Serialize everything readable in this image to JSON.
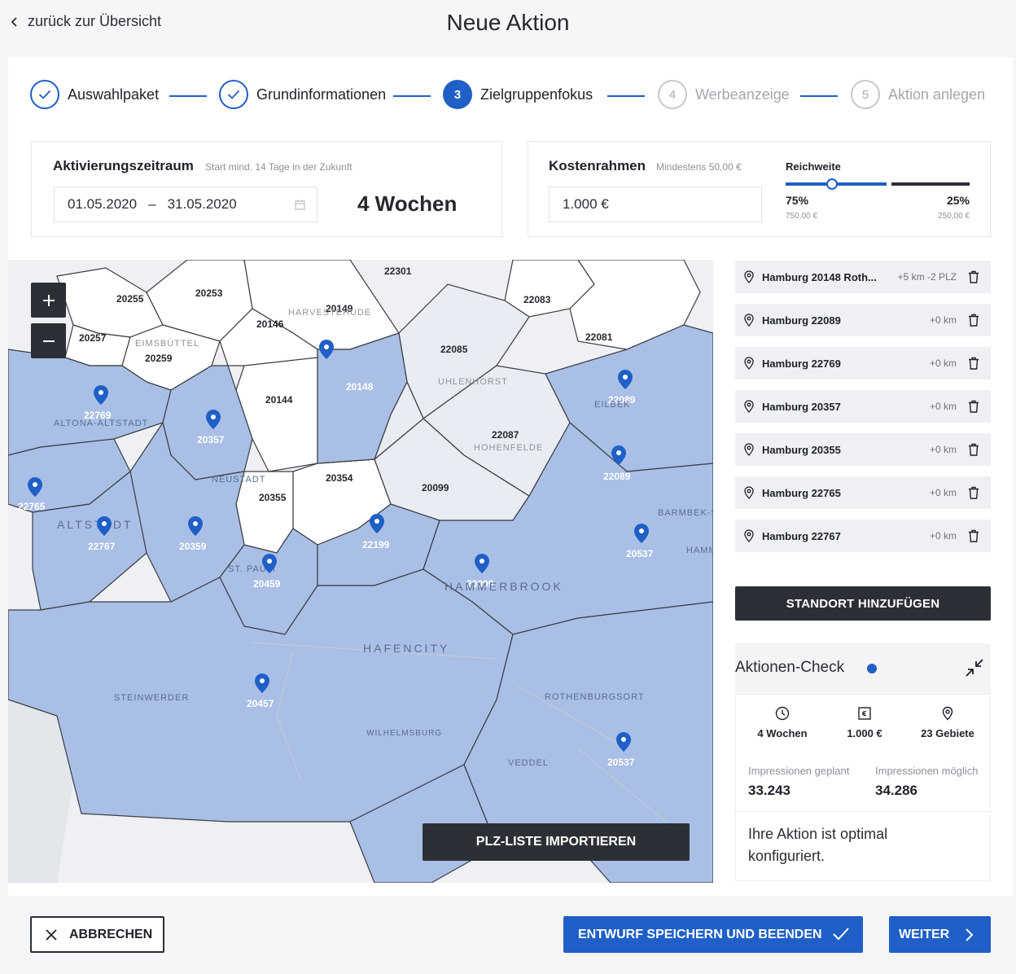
{
  "header": {
    "back_label": "zurück zur Übersicht",
    "title": "Neue Aktion"
  },
  "stepper": [
    {
      "number": "1",
      "label": "Auswahlpaket",
      "state": "done"
    },
    {
      "number": "2",
      "label": "Grundinformationen",
      "state": "done"
    },
    {
      "number": "3",
      "label": "Zielgruppenfokus",
      "state": "active"
    },
    {
      "number": "4",
      "label": "Werbeanzeige",
      "state": "todo"
    },
    {
      "number": "5",
      "label": "Aktion anlegen",
      "state": "todo"
    }
  ],
  "activation": {
    "title": "Aktivierungszeitraum",
    "hint": "Start mind. 14 Tage in der Zukunft",
    "start": "01.05.2020",
    "separator": "–",
    "end": "31.05.2020",
    "duration": "4 Wochen"
  },
  "budget": {
    "title": "Kostenrahmen",
    "hint": "Mindestens 50,00 €",
    "value": "1.000 €",
    "reach_label": "Reichweite",
    "reach_fraction": 0.75,
    "left_pct": "75%",
    "left_amount": "750,00 €",
    "right_pct": "25%",
    "right_amount": "250,00 €"
  },
  "map": {
    "zoom_in": "+",
    "zoom_out": "−",
    "import_label": "PLZ-LISTE IMPORTIEREN",
    "selected_color": "#a9bfe6",
    "unselected_color": "#e9ecf2",
    "postcodes": [
      "22301",
      "20255",
      "20253",
      "20149",
      "20146",
      "20257",
      "20259",
      "22083",
      "22081",
      "22085",
      "20148",
      "20144",
      "22769",
      "20357",
      "22089",
      "22087",
      "22765",
      "20354",
      "20099",
      "20355",
      "22767",
      "20359",
      "22199",
      "20537",
      "20459",
      "20099",
      "20457",
      "20537"
    ],
    "place_names": [
      "EIMSBÜTTEL",
      "HARVESTEHUDE",
      "UHLENHORST",
      "HOHENFELDE",
      "ALTONA-ALTSTADT",
      "ST. PAULI",
      "HAMMERBROOK",
      "HAFENCITY",
      "STEINWERDER",
      "ROTHENBURGSORT",
      "WILHELMSBURG",
      "VEDDEL",
      "HAMM",
      "BARMBEK-SÜD",
      "EILBEK",
      "ALTSTADT",
      "NEUSTADT"
    ]
  },
  "locations": [
    {
      "name": "Hamburg 20148 Roth...",
      "extra": "+5 km -2 PLZ"
    },
    {
      "name": "Hamburg 22089",
      "extra": "+0 km"
    },
    {
      "name": "Hamburg 22769",
      "extra": "+0 km"
    },
    {
      "name": "Hamburg 20357",
      "extra": "+0 km"
    },
    {
      "name": "Hamburg 20355",
      "extra": "+0 km"
    },
    {
      "name": "Hamburg 22765",
      "extra": "+0 km"
    },
    {
      "name": "Hamburg 22767",
      "extra": "+0 km"
    }
  ],
  "add_location_label": "STANDORT HINZUFÜGEN",
  "check": {
    "title": "Aktionen-Check",
    "duration": "4 Wochen",
    "budget": "1.000 €",
    "areas": "23 Gebiete",
    "planned_label": "Impressionen geplant",
    "planned_value": "33.243",
    "possible_label": "Impressionen möglich",
    "possible_value": "34.286",
    "message": "Ihre Aktion ist optimal konfiguriert."
  },
  "footer": {
    "cancel_label": "ABBRECHEN",
    "save_label": "ENTWURF SPEICHERN UND BEENDEN",
    "next_label": "WEITER"
  },
  "colors": {
    "accent": "#1f5fc7",
    "dark_button": "#2c3036"
  }
}
